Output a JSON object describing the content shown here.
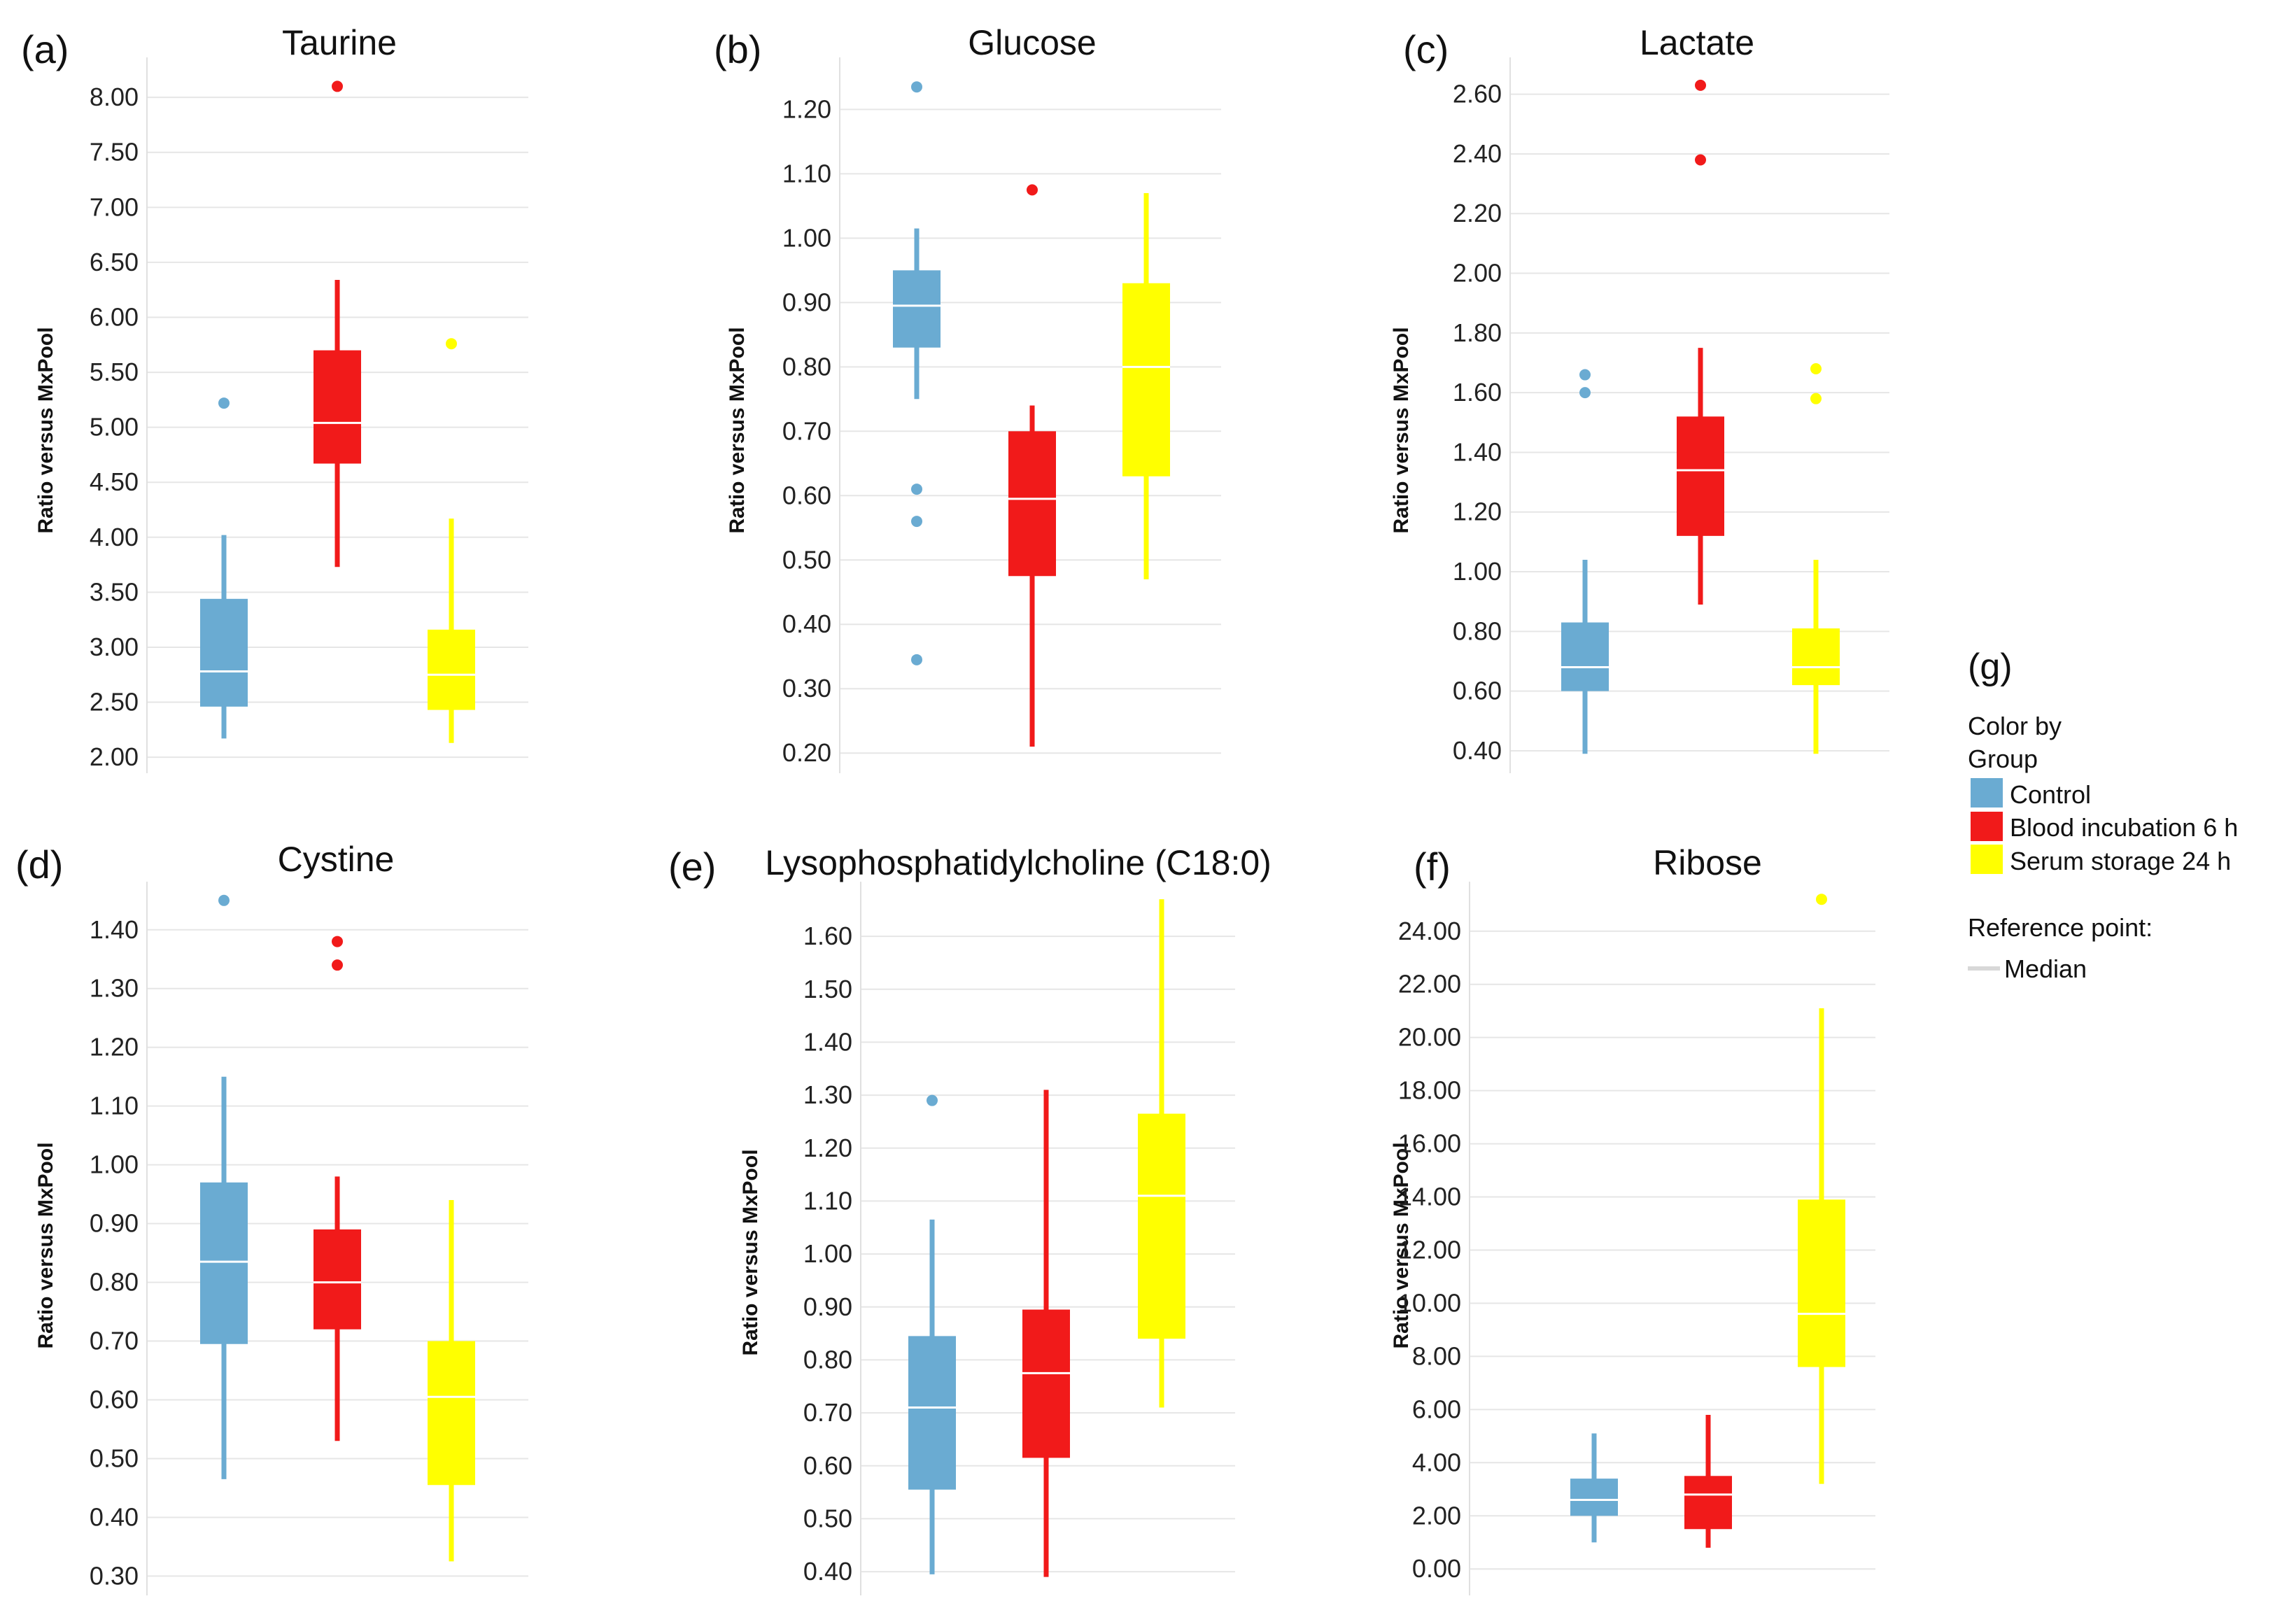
{
  "colors": {
    "control": "#6aabd2",
    "blood": "#f11a1a",
    "serum": "#ffff00",
    "median": "#ffffff",
    "grid": "#e6e6e6"
  },
  "legend": {
    "panel_label": "(g)",
    "title_line1": "Color by",
    "title_line2": "Group",
    "items": [
      {
        "name": "Control",
        "color": "#6aabd2"
      },
      {
        "name": "Blood incubation 6 h",
        "color": "#f11a1a"
      },
      {
        "name": "Serum storage 24 h",
        "color": "#ffff00"
      }
    ],
    "reference_title": "Reference point:",
    "reference_item": "Median"
  },
  "chart_data": [
    {
      "label": "(a)",
      "type": "box",
      "title": "Taurine",
      "ylabel": "Ratio versus MxPool",
      "ylim": [
        1.95,
        8.3
      ],
      "ticks": [
        2.0,
        2.5,
        3.0,
        3.5,
        4.0,
        4.5,
        5.0,
        5.5,
        6.0,
        6.5,
        7.0,
        7.5,
        8.0
      ],
      "tick_labels": [
        "2.00",
        "2.50",
        "3.00",
        "3.50",
        "4.00",
        "4.50",
        "5.00",
        "5.50",
        "6.00",
        "6.50",
        "7.00",
        "7.50",
        "8.00"
      ],
      "series": [
        {
          "name": "Control",
          "whisker_low": 2.17,
          "q1": 2.46,
          "median": 2.78,
          "q3": 3.44,
          "whisker_high": 4.02,
          "outliers": [
            5.22
          ]
        },
        {
          "name": "Blood incubation 6 h",
          "whisker_low": 3.73,
          "q1": 4.67,
          "median": 5.04,
          "q3": 5.7,
          "whisker_high": 6.34,
          "outliers": [
            8.1
          ]
        },
        {
          "name": "Serum storage 24 h",
          "whisker_low": 2.13,
          "q1": 2.43,
          "median": 2.75,
          "q3": 3.16,
          "whisker_high": 4.17,
          "outliers": [
            5.76
          ]
        }
      ]
    },
    {
      "label": "(b)",
      "type": "box",
      "title": "Glucose",
      "ylabel": "Ratio versus MxPool",
      "ylim": [
        0.185,
        1.27
      ],
      "ticks": [
        0.2,
        0.3,
        0.4,
        0.5,
        0.6,
        0.7,
        0.8,
        0.9,
        1.0,
        1.1,
        1.2
      ],
      "tick_labels": [
        "0.20",
        "0.30",
        "0.40",
        "0.50",
        "0.60",
        "0.70",
        "0.80",
        "0.90",
        "1.00",
        "1.10",
        "1.20"
      ],
      "series": [
        {
          "name": "Control",
          "whisker_low": 0.75,
          "q1": 0.83,
          "median": 0.895,
          "q3": 0.95,
          "whisker_high": 1.015,
          "outliers": [
            1.235,
            0.61,
            0.56,
            0.345
          ]
        },
        {
          "name": "Blood incubation 6 h",
          "whisker_low": 0.21,
          "q1": 0.475,
          "median": 0.595,
          "q3": 0.7,
          "whisker_high": 0.74,
          "outliers": [
            1.075
          ]
        },
        {
          "name": "Serum storage 24 h",
          "whisker_low": 0.47,
          "q1": 0.63,
          "median": 0.8,
          "q3": 0.93,
          "whisker_high": 1.07,
          "outliers": []
        }
      ]
    },
    {
      "label": "(c)",
      "type": "box",
      "title": "Lactate",
      "ylabel": "Ratio versus MxPool",
      "ylim": [
        0.36,
        2.7
      ],
      "ticks": [
        0.4,
        0.6,
        0.8,
        1.0,
        1.2,
        1.4,
        1.6,
        1.8,
        2.0,
        2.2,
        2.4,
        2.6
      ],
      "tick_labels": [
        "0.40",
        "0.60",
        "0.80",
        "1.00",
        "1.20",
        "1.40",
        "1.60",
        "1.80",
        "2.00",
        "2.20",
        "2.40",
        "2.60"
      ],
      "series": [
        {
          "name": "Control",
          "whisker_low": 0.39,
          "q1": 0.6,
          "median": 0.68,
          "q3": 0.83,
          "whisker_high": 1.04,
          "outliers": [
            1.66,
            1.6
          ]
        },
        {
          "name": "Blood incubation 6 h",
          "whisker_low": 0.89,
          "q1": 1.12,
          "median": 1.34,
          "q3": 1.52,
          "whisker_high": 1.75,
          "outliers": [
            2.63,
            2.38
          ]
        },
        {
          "name": "Serum storage 24 h",
          "whisker_low": 0.39,
          "q1": 0.62,
          "median": 0.68,
          "q3": 0.81,
          "whisker_high": 1.04,
          "outliers": [
            1.68,
            1.58
          ]
        }
      ]
    },
    {
      "label": "(d)",
      "type": "box",
      "title": "Cystine",
      "ylabel": "Ratio versus MxPool",
      "ylim": [
        0.285,
        1.47
      ],
      "ticks": [
        0.3,
        0.4,
        0.5,
        0.6,
        0.7,
        0.8,
        0.9,
        1.0,
        1.1,
        1.2,
        1.3,
        1.4
      ],
      "tick_labels": [
        "0.30",
        "0.40",
        "0.50",
        "0.60",
        "0.70",
        "0.80",
        "0.90",
        "1.00",
        "1.10",
        "1.20",
        "1.30",
        "1.40"
      ],
      "series": [
        {
          "name": "Control",
          "whisker_low": 0.465,
          "q1": 0.695,
          "median": 0.835,
          "q3": 0.97,
          "whisker_high": 1.15,
          "outliers": [
            1.45
          ]
        },
        {
          "name": "Blood incubation 6 h",
          "whisker_low": 0.53,
          "q1": 0.72,
          "median": 0.8,
          "q3": 0.89,
          "whisker_high": 0.98,
          "outliers": [
            1.38,
            1.34
          ]
        },
        {
          "name": "Serum storage 24 h",
          "whisker_low": 0.325,
          "q1": 0.455,
          "median": 0.605,
          "q3": 0.7,
          "whisker_high": 0.94,
          "outliers": []
        }
      ]
    },
    {
      "label": "(e)",
      "type": "box",
      "title": "Lysophosphatidylcholine (C18:0)",
      "ylabel": "Ratio versus MxPool",
      "ylim": [
        0.375,
        1.69
      ],
      "ticks": [
        0.4,
        0.5,
        0.6,
        0.7,
        0.8,
        0.9,
        1.0,
        1.1,
        1.2,
        1.3,
        1.4,
        1.5,
        1.6
      ],
      "tick_labels": [
        "0.40",
        "0.50",
        "0.60",
        "0.70",
        "0.80",
        "0.90",
        "1.00",
        "1.10",
        "1.20",
        "1.30",
        "1.40",
        "1.50",
        "1.60"
      ],
      "series": [
        {
          "name": "Control",
          "whisker_low": 0.395,
          "q1": 0.555,
          "median": 0.71,
          "q3": 0.845,
          "whisker_high": 1.065,
          "outliers": [
            1.29
          ]
        },
        {
          "name": "Blood incubation 6 h",
          "whisker_low": 0.39,
          "q1": 0.615,
          "median": 0.775,
          "q3": 0.895,
          "whisker_high": 1.31,
          "outliers": []
        },
        {
          "name": "Serum storage 24 h",
          "whisker_low": 0.71,
          "q1": 0.84,
          "median": 1.11,
          "q3": 1.265,
          "whisker_high": 1.67,
          "outliers": []
        }
      ]
    },
    {
      "label": "(f)",
      "type": "box",
      "title": "Ribose",
      "ylabel": "Ratio versus MxPool",
      "ylim": [
        -0.6,
        25.6
      ],
      "ticks": [
        0,
        2,
        4,
        6,
        8,
        10,
        12,
        14,
        16,
        18,
        20,
        22,
        24
      ],
      "tick_labels": [
        "0.00",
        "2.00",
        "4.00",
        "6.00",
        "8.00",
        "10.00",
        "12.00",
        "14.00",
        "16.00",
        "18.00",
        "20.00",
        "22.00",
        "24.00"
      ],
      "series": [
        {
          "name": "Control",
          "whisker_low": 1.0,
          "q1": 2.0,
          "median": 2.6,
          "q3": 3.4,
          "whisker_high": 5.1,
          "outliers": []
        },
        {
          "name": "Blood incubation 6 h",
          "whisker_low": 0.8,
          "q1": 1.5,
          "median": 2.8,
          "q3": 3.5,
          "whisker_high": 5.8,
          "outliers": []
        },
        {
          "name": "Serum storage 24 h",
          "whisker_low": 3.2,
          "q1": 7.6,
          "median": 9.6,
          "q3": 13.9,
          "whisker_high": 21.1,
          "outliers": [
            25.2
          ]
        }
      ]
    }
  ]
}
